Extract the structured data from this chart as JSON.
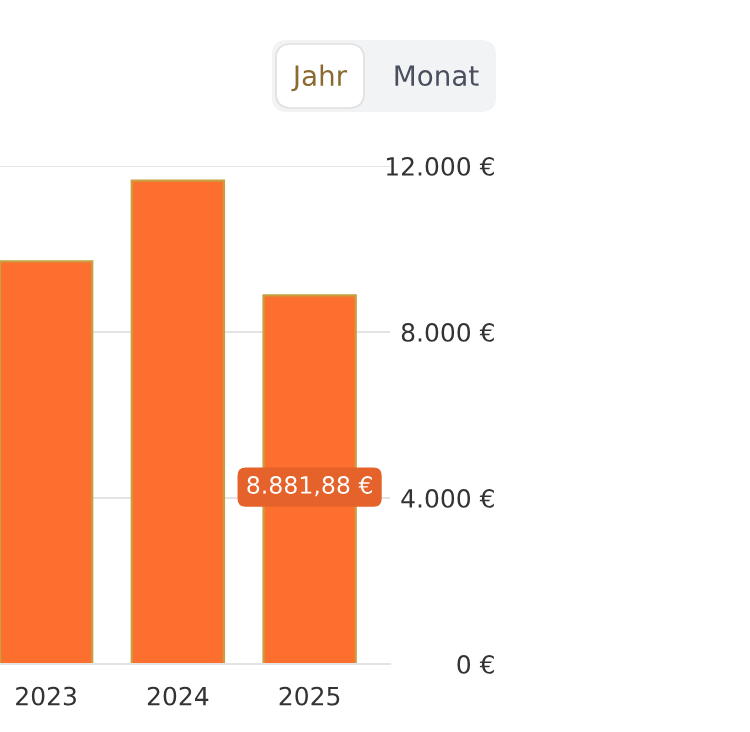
{
  "chart_data": {
    "type": "bar",
    "categories": [
      "2023",
      "2024",
      "2025"
    ],
    "values": [
      9700,
      11650,
      8881.88
    ],
    "value_labels": [
      null,
      null,
      "8.881,88 €"
    ],
    "color": "#fd6f2e",
    "ylim": [
      0,
      12000
    ],
    "yticks": [
      {
        "value": 0,
        "label": "0 €"
      },
      {
        "value": 4000,
        "label": "4.000 €"
      },
      {
        "value": 8000,
        "label": "8.000 €"
      },
      {
        "value": 12000,
        "label": "12.000 €"
      }
    ],
    "grid": "y",
    "annotations": [
      "Jahr",
      "Monat"
    ]
  }
}
